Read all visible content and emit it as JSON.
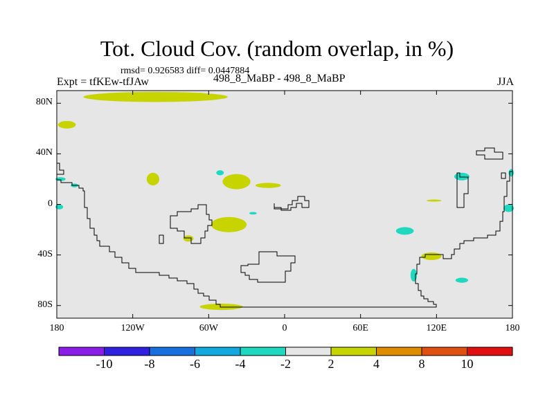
{
  "title": "Tot. Cloud Cov. (random overlap, in %)",
  "stats": "rmsd= 0.926583 diff= 0.0447884",
  "left_subtitle": "Expt = tfKEw-tfJAw",
  "center_subtitle": "498_8_MaBP - 498_8_MaBP",
  "right_subtitle": "JJA",
  "map": {
    "projection": "cylindrical equidistant",
    "lon_range": [
      -180,
      180
    ],
    "lat_range": [
      -90,
      90
    ],
    "background_color": "#e6e6e6",
    "coastline_color": "#000000",
    "y_ticks": [
      {
        "lat": 80,
        "label": "80N"
      },
      {
        "lat": 40,
        "label": "40N"
      },
      {
        "lat": 0,
        "label": "0"
      },
      {
        "lat": -40,
        "label": "40S"
      },
      {
        "lat": -80,
        "label": "80S"
      }
    ],
    "x_ticks": [
      {
        "lon": -180,
        "label": "180"
      },
      {
        "lon": -120,
        "label": "120W"
      },
      {
        "lon": -60,
        "label": "60W"
      },
      {
        "lon": 0,
        "label": "0"
      },
      {
        "lon": 60,
        "label": "60E"
      },
      {
        "lon": 120,
        "label": "120E"
      },
      {
        "lon": 180,
        "label": "180"
      }
    ],
    "anomaly_regions": [
      {
        "lon": -102,
        "lat": 85,
        "rlon": 57,
        "rlat": 4,
        "range": "2 to 4"
      },
      {
        "lon": -145,
        "lat": 86,
        "rlon": 8,
        "rlat": 1.2,
        "range": "2 to 4"
      },
      {
        "lon": -172,
        "lat": 63,
        "rlon": 7,
        "rlat": 3,
        "range": "2 to 4"
      },
      {
        "lon": -104,
        "lat": 20,
        "rlon": 5,
        "rlat": 5,
        "range": "2 to 4"
      },
      {
        "lon": -38,
        "lat": 18,
        "rlon": 11,
        "rlat": 6,
        "range": "2 to 4"
      },
      {
        "lon": -13,
        "lat": 15,
        "rlon": 10,
        "rlat": 2,
        "range": "2 to 4"
      },
      {
        "lon": -44,
        "lat": -16,
        "rlon": 14,
        "rlat": 6,
        "range": "2 to 4"
      },
      {
        "lon": -76,
        "lat": -27,
        "rlon": 4,
        "rlat": 2.5,
        "range": "2 to 4"
      },
      {
        "lon": 116,
        "lat": -41,
        "rlon": 8,
        "rlat": 3,
        "range": "2 to 4"
      },
      {
        "lon": 118,
        "lat": 3,
        "rlon": 6,
        "rlat": 0.8,
        "range": "2 to 4"
      },
      {
        "lon": -50,
        "lat": -81,
        "rlon": 17,
        "rlat": 2.5,
        "range": "2 to 4"
      },
      {
        "lon": -51,
        "lat": 25,
        "rlon": 3,
        "rlat": 2,
        "range": "-4 to -2"
      },
      {
        "lon": -177,
        "lat": 20,
        "rlon": 4,
        "rlat": 1.5,
        "range": "-4 to -2"
      },
      {
        "lon": -166,
        "lat": 15,
        "rlon": 3,
        "rlat": 1.5,
        "range": "-4 to -2"
      },
      {
        "lon": -178,
        "lat": -2,
        "rlon": 3,
        "rlat": 2,
        "range": "-4 to -2"
      },
      {
        "lon": -25,
        "lat": -7,
        "rlon": 3,
        "rlat": 1,
        "range": "-4 to -2"
      },
      {
        "lon": 140,
        "lat": 22,
        "rlon": 6,
        "rlat": 3,
        "range": "-4 to -2"
      },
      {
        "lon": 95,
        "lat": -21,
        "rlon": 7,
        "rlat": 3,
        "range": "-4 to -2"
      },
      {
        "lon": 102,
        "lat": -56,
        "rlon": 2.5,
        "rlat": 5,
        "range": "-4 to -2"
      },
      {
        "lon": 140,
        "lat": -60,
        "rlon": 5,
        "rlat": 2,
        "range": "-4 to -2"
      },
      {
        "lon": 177,
        "lat": -3,
        "rlon": 4,
        "rlat": 3,
        "range": "-4 to -2"
      },
      {
        "lon": 179,
        "lat": 25,
        "rlon": 2,
        "rlat": 3,
        "range": "-4 to -2"
      }
    ]
  },
  "colorbar": {
    "colors": [
      "#8a1ee6",
      "#3020e0",
      "#1870e0",
      "#14a8e0",
      "#1ed8c0",
      "#e6e6e6",
      "#c8d400",
      "#e08c00",
      "#e05010",
      "#e01010"
    ],
    "labels": [
      "-10",
      "-8",
      "-6",
      "-4",
      "-2",
      "2",
      "4",
      "8",
      "10"
    ]
  },
  "chart_data": {
    "type": "heatmap",
    "title": "Tot. Cloud Cov. (random overlap, in %)",
    "stats_text": "rmsd= 0.926583 diff= 0.0447884",
    "levels": [
      -10,
      -8,
      -6,
      -4,
      -2,
      2,
      4,
      8,
      10
    ],
    "units": "%",
    "x_axis": {
      "labels": [
        "180",
        "120W",
        "60W",
        "0",
        "60E",
        "120E",
        "180"
      ]
    },
    "y_axis": {
      "labels": [
        "80N",
        "40N",
        "0",
        "40S",
        "80S"
      ]
    },
    "features": [
      {
        "region": "Arctic north of North America",
        "range": "2 to 4"
      },
      {
        "region": "East Pacific",
        "range": "2 to 4"
      },
      {
        "region": "Central Atlantic",
        "range": "2 to 4"
      },
      {
        "region": "South Atlantic",
        "range": "2 to 4"
      },
      {
        "region": "South Indian Ocean",
        "range": "2 to 4"
      },
      {
        "region": "West Pacific",
        "range": "-4 to -2"
      },
      {
        "region": "Indian Ocean",
        "range": "-4 to -2"
      }
    ]
  }
}
